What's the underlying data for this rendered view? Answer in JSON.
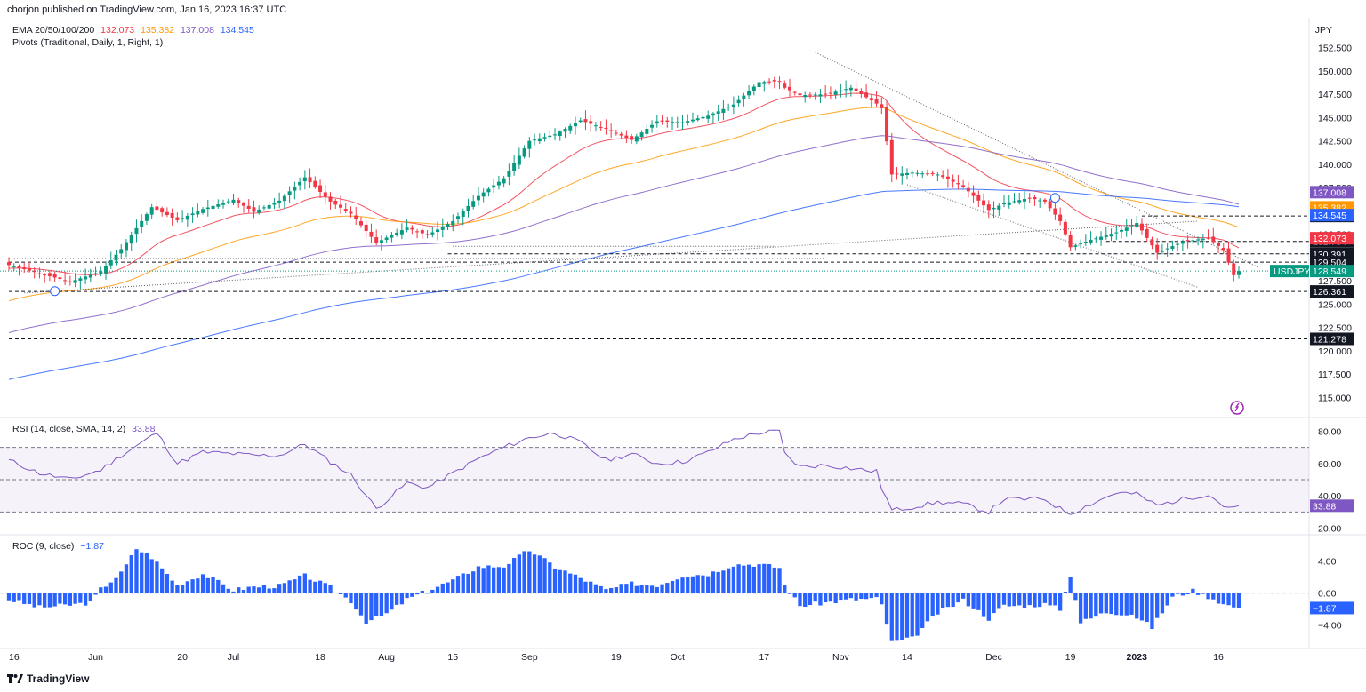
{
  "header": {
    "published": "cborjon published on TradingView.com, Jan 16, 2023 16:37 UTC"
  },
  "footer": {
    "brand": "TradingView"
  },
  "chart_data": [
    {
      "type": "candlestick",
      "symbol_label": "USDJPY",
      "currency": "JPY",
      "legend": [
        {
          "label": "EMA 20/50/100/200",
          "color": "#131722"
        },
        {
          "label": "132.073",
          "color": "#f23645"
        },
        {
          "label": "135.382",
          "color": "#ff9800"
        },
        {
          "label": "137.008",
          "color": "#7e57c2"
        },
        {
          "label": "134.545",
          "color": "#2962ff"
        }
      ],
      "legend2": "Pivots (Traditional, Daily, 1, Right, 1)",
      "ylim": [
        113.8,
        153.8
      ],
      "y_ticks": [
        "152.500",
        "150.000",
        "147.500",
        "145.000",
        "142.500",
        "140.000",
        "137.500",
        "135.000",
        "132.500",
        "130.000",
        "127.500",
        "125.000",
        "122.500",
        "120.000",
        "117.500",
        "115.000"
      ],
      "x_tick_labels": [
        "16",
        "Jun",
        "20",
        "Jul",
        "18",
        "Aug",
        "15",
        "Sep",
        "19",
        "Oct",
        "17",
        "Nov",
        "14",
        "Dec",
        "19",
        "2023",
        "16"
      ],
      "close_anchors": [
        [
          0,
          129.2
        ],
        [
          6,
          128.3
        ],
        [
          12,
          127.4
        ],
        [
          18,
          128.5
        ],
        [
          22,
          130.9
        ],
        [
          28,
          135.4
        ],
        [
          33,
          134.0
        ],
        [
          38,
          135.2
        ],
        [
          44,
          136.2
        ],
        [
          48,
          134.9
        ],
        [
          53,
          136.1
        ],
        [
          58,
          138.6
        ],
        [
          63,
          136.0
        ],
        [
          67,
          134.7
        ],
        [
          72,
          131.6
        ],
        [
          78,
          133.2
        ],
        [
          82,
          132.4
        ],
        [
          87,
          133.9
        ],
        [
          92,
          136.6
        ],
        [
          97,
          138.5
        ],
        [
          102,
          142.5
        ],
        [
          107,
          143.2
        ],
        [
          112,
          144.7
        ],
        [
          117,
          143.8
        ],
        [
          122,
          142.6
        ],
        [
          127,
          144.6
        ],
        [
          132,
          144.5
        ],
        [
          137,
          145.2
        ],
        [
          142,
          146.4
        ],
        [
          147,
          148.8
        ],
        [
          151,
          148.9
        ],
        [
          152,
          148.2
        ],
        [
          155,
          147.4
        ],
        [
          160,
          147.5
        ],
        [
          165,
          148.2
        ],
        [
          170,
          146.5
        ],
        [
          171,
          146.0
        ],
        [
          173,
          138.9
        ],
        [
          177,
          139.1
        ],
        [
          182,
          138.9
        ],
        [
          187,
          137.6
        ],
        [
          192,
          135.1
        ],
        [
          195,
          135.8
        ],
        [
          200,
          136.4
        ],
        [
          203,
          136.0
        ],
        [
          206,
          133.9
        ],
        [
          208,
          131.1
        ],
        [
          212,
          131.9
        ],
        [
          217,
          132.7
        ],
        [
          221,
          133.7
        ],
        [
          225,
          130.5
        ],
        [
          230,
          131.7
        ],
        [
          235,
          132.1
        ],
        [
          238,
          130.8
        ],
        [
          240,
          128.1
        ],
        [
          241,
          127.9
        ]
      ],
      "candle_count": 242,
      "horizontal_levels": [
        {
          "label": "134.452",
          "value": 134.452,
          "style": "dashed"
        },
        {
          "label": "131.734",
          "value": 131.734,
          "style": "dashed"
        },
        {
          "label": "130.391",
          "value": 130.391,
          "style": "dashed"
        },
        {
          "label": "129.504",
          "value": 129.504,
          "style": "dashed"
        },
        {
          "label": "126.361",
          "value": 126.361,
          "style": "dashed"
        },
        {
          "label": "121.278",
          "value": 121.278,
          "style": "dashed"
        }
      ],
      "price_tags": [
        {
          "label": "137.008",
          "value": 137.008,
          "color": "#7e57c2"
        },
        {
          "label": "135.382",
          "value": 135.382,
          "color": "#ff9800"
        },
        {
          "label": "134.545",
          "value": 134.545,
          "color": "#2962ff"
        },
        {
          "label": "132.073",
          "value": 132.073,
          "color": "#f23645"
        },
        {
          "label": "128.549",
          "value": 128.549,
          "color": "#089981"
        }
      ],
      "last_price": 128.549
    },
    {
      "type": "line",
      "title": "RSI (14, close, SMA, 14, 2)",
      "current_label": "33.88",
      "color": "#7e57c2",
      "ylim": [
        17,
        83
      ],
      "y_ticks": [
        "80.00",
        "60.00",
        "40.00",
        "20.00"
      ],
      "bands": [
        70,
        50,
        30
      ],
      "anchors": [
        [
          0,
          62
        ],
        [
          6,
          54
        ],
        [
          12,
          50
        ],
        [
          18,
          56
        ],
        [
          22,
          65
        ],
        [
          28,
          77
        ],
        [
          29,
          79
        ],
        [
          33,
          60
        ],
        [
          38,
          67
        ],
        [
          44,
          66
        ],
        [
          48,
          65
        ],
        [
          53,
          65
        ],
        [
          58,
          72
        ],
        [
          63,
          61
        ],
        [
          67,
          53
        ],
        [
          72,
          32
        ],
        [
          78,
          48
        ],
        [
          82,
          45
        ],
        [
          87,
          54
        ],
        [
          92,
          63
        ],
        [
          97,
          70
        ],
        [
          102,
          76
        ],
        [
          107,
          79
        ],
        [
          112,
          73
        ],
        [
          117,
          62
        ],
        [
          122,
          66
        ],
        [
          127,
          60
        ],
        [
          132,
          61
        ],
        [
          137,
          67
        ],
        [
          142,
          75
        ],
        [
          147,
          79
        ],
        [
          151,
          80
        ],
        [
          152,
          66
        ],
        [
          155,
          58
        ],
        [
          160,
          59
        ],
        [
          165,
          57
        ],
        [
          170,
          55
        ],
        [
          171,
          45
        ],
        [
          173,
          31
        ],
        [
          177,
          33
        ],
        [
          182,
          36
        ],
        [
          187,
          35
        ],
        [
          192,
          30
        ],
        [
          195,
          38
        ],
        [
          200,
          38
        ],
        [
          203,
          38
        ],
        [
          206,
          32
        ],
        [
          208,
          29
        ],
        [
          212,
          35
        ],
        [
          217,
          42
        ],
        [
          221,
          41
        ],
        [
          225,
          34
        ],
        [
          230,
          38
        ],
        [
          235,
          41
        ],
        [
          238,
          34
        ],
        [
          240,
          32
        ],
        [
          241,
          33.88
        ]
      ]
    },
    {
      "type": "bar",
      "title": "ROC (9, close)",
      "current_label": "−1.87",
      "color": "#2962ff",
      "ylim": [
        -6.5,
        6.2
      ],
      "y_ticks": [
        "4.00",
        "0.00",
        "−4.00"
      ],
      "zero_label": "0.00",
      "anchors": [
        [
          0,
          -0.8
        ],
        [
          6,
          -1.8
        ],
        [
          12,
          -1.5
        ],
        [
          16,
          -1.2
        ],
        [
          18,
          0.5
        ],
        [
          22,
          2.5
        ],
        [
          25,
          5.6
        ],
        [
          28,
          4.5
        ],
        [
          33,
          1.0
        ],
        [
          38,
          2.4
        ],
        [
          44,
          0.4
        ],
        [
          48,
          0.8
        ],
        [
          53,
          0.9
        ],
        [
          58,
          2.2
        ],
        [
          63,
          0.7
        ],
        [
          67,
          -1.0
        ],
        [
          70,
          -3.6
        ],
        [
          74,
          -2.6
        ],
        [
          78,
          -0.8
        ],
        [
          82,
          0.3
        ],
        [
          87,
          1.6
        ],
        [
          92,
          3.3
        ],
        [
          97,
          3.4
        ],
        [
          102,
          5.4
        ],
        [
          107,
          3.3
        ],
        [
          112,
          1.9
        ],
        [
          117,
          0.4
        ],
        [
          122,
          1.2
        ],
        [
          127,
          1.0
        ],
        [
          132,
          2.2
        ],
        [
          137,
          2.4
        ],
        [
          142,
          3.6
        ],
        [
          147,
          3.6
        ],
        [
          151,
          3.2
        ],
        [
          152,
          1.0
        ],
        [
          155,
          -1.6
        ],
        [
          160,
          -1.2
        ],
        [
          165,
          -0.8
        ],
        [
          170,
          -0.7
        ],
        [
          171,
          -1.5
        ],
        [
          173,
          -6.2
        ],
        [
          177,
          -5.7
        ],
        [
          182,
          -2.5
        ],
        [
          187,
          -0.9
        ],
        [
          192,
          -3.2
        ],
        [
          195,
          -1.6
        ],
        [
          200,
          -1.6
        ],
        [
          203,
          -1.4
        ],
        [
          206,
          -2.0
        ],
        [
          208,
          2.3
        ],
        [
          210,
          -3.7
        ],
        [
          215,
          -2.4
        ],
        [
          220,
          -2.6
        ],
        [
          224,
          -4.3
        ],
        [
          228,
          -0.5
        ],
        [
          232,
          0.3
        ],
        [
          236,
          -0.7
        ],
        [
          238,
          -1.4
        ],
        [
          241,
          -1.87
        ]
      ]
    }
  ]
}
